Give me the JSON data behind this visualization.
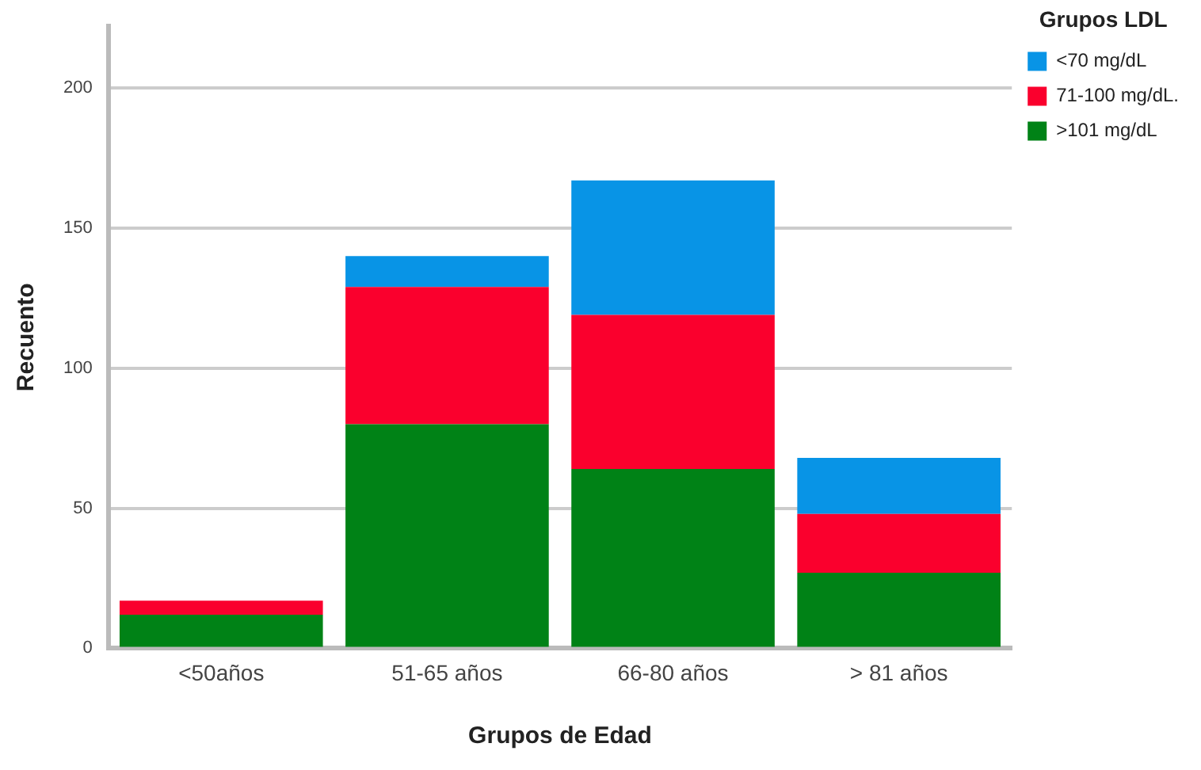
{
  "chart_data": {
    "type": "bar",
    "stacked": true,
    "xlabel": "Grupos de Edad",
    "ylabel": "Recuento",
    "legend_title": "Grupos LDL",
    "legend": "top right",
    "grid": "y",
    "categories": [
      "<50años",
      "51-65 años",
      "66-80 años",
      "> 81 años"
    ],
    "ylim": [
      0,
      222
    ],
    "yticks": [
      0,
      50,
      100,
      150,
      200
    ],
    "series": [
      {
        "name": ">101 mg/dL",
        "color": "#008216",
        "values": [
          12,
          80,
          64,
          27
        ]
      },
      {
        "name": "71-100 mg/dL.",
        "color": "#fa002d",
        "values": [
          5,
          49,
          55,
          21
        ]
      },
      {
        "name": "<70 mg/dL",
        "color": "#0894e6",
        "values": [
          0,
          11,
          48,
          20
        ]
      }
    ]
  }
}
